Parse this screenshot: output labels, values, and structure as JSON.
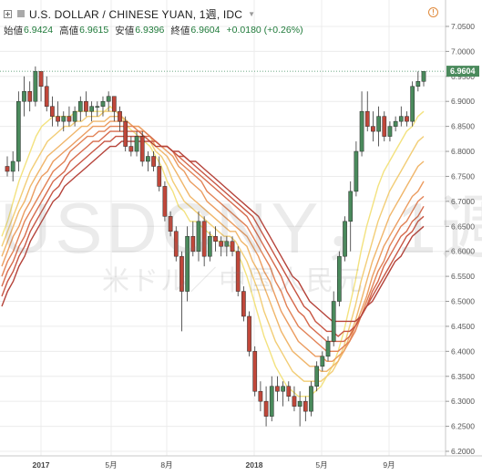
{
  "header": {
    "title": "U.S. DOLLAR / CHINESE YUAN, 1週, IDC",
    "open_label": "始値",
    "open_value": "6.9424",
    "high_label": "高値",
    "high_value": "6.9615",
    "low_label": "安値",
    "low_value": "6.9396",
    "close_label": "終値",
    "close_value": "6.9604",
    "change": "+0.0180 (+0.26%)"
  },
  "watermark": {
    "main": "USDCNY，1週",
    "sub": "米ドル／中国人民元"
  },
  "colors": {
    "up": "#4a8a5c",
    "down": "#c0473a",
    "grid": "#ececec",
    "ribbon": [
      "#f3e27f",
      "#f2cd76",
      "#f0b66b",
      "#eb9c60",
      "#e28256",
      "#d66a4c",
      "#c75543",
      "#b5433a"
    ]
  },
  "chart_data": {
    "type": "candlestick",
    "title": "U.S. DOLLAR / CHINESE YUAN, 1週, IDC",
    "y_ticks": [
      "7.0500",
      "7.0000",
      "6.9500",
      "6.9000",
      "6.8500",
      "6.8000",
      "6.7500",
      "6.7000",
      "6.6500",
      "6.6000",
      "6.5500",
      "6.5000",
      "6.4500",
      "6.4000",
      "6.3500",
      "6.3000",
      "6.2500",
      "6.2000"
    ],
    "x_ticks": [
      "2017",
      "5月",
      "8月",
      "2018",
      "5月",
      "9月"
    ],
    "ylim": [
      6.2,
      7.07
    ],
    "last_price": "6.9604",
    "candles": [
      [
        6.77,
        6.79,
        6.75,
        6.76
      ],
      [
        6.76,
        6.8,
        6.74,
        6.78
      ],
      [
        6.78,
        6.92,
        6.76,
        6.9
      ],
      [
        6.9,
        6.95,
        6.87,
        6.92
      ],
      [
        6.92,
        6.94,
        6.88,
        6.9
      ],
      [
        6.9,
        6.97,
        6.89,
        6.96
      ],
      [
        6.96,
        6.96,
        6.9,
        6.93
      ],
      [
        6.93,
        6.95,
        6.88,
        6.89
      ],
      [
        6.89,
        6.91,
        6.85,
        6.87
      ],
      [
        6.87,
        6.9,
        6.85,
        6.86
      ],
      [
        6.86,
        6.88,
        6.84,
        6.87
      ],
      [
        6.87,
        6.89,
        6.85,
        6.86
      ],
      [
        6.86,
        6.89,
        6.85,
        6.88
      ],
      [
        6.88,
        6.91,
        6.86,
        6.9
      ],
      [
        6.9,
        6.92,
        6.87,
        6.88
      ],
      [
        6.88,
        6.9,
        6.86,
        6.89
      ],
      [
        6.89,
        6.9,
        6.87,
        6.89
      ],
      [
        6.89,
        6.91,
        6.87,
        6.9
      ],
      [
        6.9,
        6.92,
        6.88,
        6.91
      ],
      [
        6.91,
        6.91,
        6.86,
        6.88
      ],
      [
        6.88,
        6.89,
        6.84,
        6.86
      ],
      [
        6.86,
        6.87,
        6.8,
        6.81
      ],
      [
        6.81,
        6.83,
        6.79,
        6.8
      ],
      [
        6.8,
        6.84,
        6.79,
        6.83
      ],
      [
        6.83,
        6.84,
        6.77,
        6.78
      ],
      [
        6.78,
        6.8,
        6.76,
        6.79
      ],
      [
        6.79,
        6.8,
        6.76,
        6.77
      ],
      [
        6.77,
        6.79,
        6.72,
        6.73
      ],
      [
        6.73,
        6.74,
        6.66,
        6.67
      ],
      [
        6.67,
        6.68,
        6.63,
        6.64
      ],
      [
        6.64,
        6.65,
        6.58,
        6.59
      ],
      [
        6.59,
        6.6,
        6.44,
        6.52
      ],
      [
        6.52,
        6.65,
        6.5,
        6.63
      ],
      [
        6.63,
        6.66,
        6.59,
        6.6
      ],
      [
        6.6,
        6.68,
        6.58,
        6.66
      ],
      [
        6.66,
        6.67,
        6.57,
        6.59
      ],
      [
        6.59,
        6.64,
        6.58,
        6.63
      ],
      [
        6.63,
        6.65,
        6.6,
        6.62
      ],
      [
        6.62,
        6.63,
        6.59,
        6.61
      ],
      [
        6.61,
        6.63,
        6.59,
        6.62
      ],
      [
        6.62,
        6.63,
        6.59,
        6.6
      ],
      [
        6.6,
        6.61,
        6.51,
        6.52
      ],
      [
        6.52,
        6.53,
        6.46,
        6.47
      ],
      [
        6.47,
        6.48,
        6.39,
        6.4
      ],
      [
        6.4,
        6.41,
        6.31,
        6.32
      ],
      [
        6.32,
        6.34,
        6.28,
        6.3
      ],
      [
        6.3,
        6.33,
        6.25,
        6.27
      ],
      [
        6.27,
        6.35,
        6.26,
        6.33
      ],
      [
        6.33,
        6.35,
        6.3,
        6.32
      ],
      [
        6.32,
        6.34,
        6.29,
        6.33
      ],
      [
        6.33,
        6.34,
        6.3,
        6.31
      ],
      [
        6.31,
        6.33,
        6.28,
        6.29
      ],
      [
        6.29,
        6.32,
        6.25,
        6.3
      ],
      [
        6.3,
        6.31,
        6.26,
        6.28
      ],
      [
        6.28,
        6.34,
        6.27,
        6.33
      ],
      [
        6.33,
        6.38,
        6.32,
        6.37
      ],
      [
        6.37,
        6.4,
        6.36,
        6.39
      ],
      [
        6.39,
        6.43,
        6.38,
        6.42
      ],
      [
        6.42,
        6.52,
        6.41,
        6.5
      ],
      [
        6.5,
        6.6,
        6.49,
        6.59
      ],
      [
        6.59,
        6.67,
        6.58,
        6.66
      ],
      [
        6.66,
        6.74,
        6.6,
        6.72
      ],
      [
        6.72,
        6.82,
        6.71,
        6.8
      ],
      [
        6.8,
        6.92,
        6.79,
        6.88
      ],
      [
        6.88,
        6.92,
        6.84,
        6.85
      ],
      [
        6.85,
        6.88,
        6.82,
        6.84
      ],
      [
        6.84,
        6.89,
        6.81,
        6.87
      ],
      [
        6.87,
        6.88,
        6.82,
        6.83
      ],
      [
        6.83,
        6.86,
        6.82,
        6.85
      ],
      [
        6.85,
        6.87,
        6.84,
        6.86
      ],
      [
        6.86,
        6.89,
        6.85,
        6.87
      ],
      [
        6.87,
        6.88,
        6.85,
        6.86
      ],
      [
        6.86,
        6.94,
        6.85,
        6.93
      ],
      [
        6.93,
        6.96,
        6.92,
        6.94
      ],
      [
        6.94,
        6.96,
        6.93,
        6.96
      ]
    ],
    "ribbon": [
      {
        "period": 10,
        "values": [
          6.63,
          6.66,
          6.7,
          6.74,
          6.77,
          6.8,
          6.83,
          6.85,
          6.86,
          6.87,
          6.87,
          6.87,
          6.87,
          6.88,
          6.88,
          6.88,
          6.88,
          6.88,
          6.88,
          6.89,
          6.88,
          6.87,
          6.85,
          6.84,
          6.83,
          6.82,
          6.81,
          6.79,
          6.77,
          6.74,
          6.72,
          6.69,
          6.68,
          6.66,
          6.66,
          6.65,
          6.64,
          6.63,
          6.62,
          6.62,
          6.61,
          6.6,
          6.58,
          6.55,
          6.51,
          6.47,
          6.43,
          6.4,
          6.37,
          6.35,
          6.33,
          6.32,
          6.31,
          6.31,
          6.31,
          6.32,
          6.33,
          6.35,
          6.37,
          6.4,
          6.44,
          6.49,
          6.54,
          6.6,
          6.65,
          6.69,
          6.73,
          6.76,
          6.78,
          6.8,
          6.82,
          6.84,
          6.85,
          6.87,
          6.88
        ]
      },
      {
        "period": 15,
        "values": [
          6.61,
          6.64,
          6.67,
          6.7,
          6.73,
          6.76,
          6.78,
          6.8,
          6.82,
          6.83,
          6.84,
          6.85,
          6.85,
          6.86,
          6.86,
          6.87,
          6.87,
          6.87,
          6.88,
          6.88,
          6.88,
          6.87,
          6.86,
          6.85,
          6.84,
          6.83,
          6.82,
          6.8,
          6.79,
          6.77,
          6.74,
          6.72,
          6.7,
          6.69,
          6.68,
          6.67,
          6.66,
          6.65,
          6.64,
          6.63,
          6.63,
          6.62,
          6.6,
          6.58,
          6.55,
          6.52,
          6.48,
          6.45,
          6.42,
          6.4,
          6.38,
          6.36,
          6.35,
          6.34,
          6.34,
          6.34,
          6.34,
          6.35,
          6.36,
          6.38,
          6.41,
          6.45,
          6.49,
          6.54,
          6.58,
          6.62,
          6.66,
          6.69,
          6.72,
          6.74,
          6.76,
          6.78,
          6.8,
          6.82,
          6.83
        ]
      },
      {
        "period": 20,
        "values": [
          6.59,
          6.62,
          6.65,
          6.68,
          6.7,
          6.73,
          6.75,
          6.77,
          6.79,
          6.8,
          6.81,
          6.82,
          6.83,
          6.84,
          6.85,
          6.85,
          6.86,
          6.86,
          6.86,
          6.87,
          6.87,
          6.87,
          6.86,
          6.85,
          6.85,
          6.84,
          6.83,
          6.81,
          6.8,
          6.79,
          6.77,
          6.75,
          6.73,
          6.71,
          6.7,
          6.69,
          6.68,
          6.67,
          6.66,
          6.65,
          6.64,
          6.64,
          6.62,
          6.61,
          6.58,
          6.56,
          6.53,
          6.5,
          6.47,
          6.44,
          6.42,
          6.4,
          6.39,
          6.38,
          6.37,
          6.37,
          6.36,
          6.36,
          6.37,
          6.38,
          6.4,
          6.43,
          6.46,
          6.5,
          6.54,
          6.58,
          6.61,
          6.64,
          6.67,
          6.69,
          6.71,
          6.73,
          6.75,
          6.77,
          6.78
        ]
      },
      {
        "period": 25,
        "values": [
          6.57,
          6.6,
          6.63,
          6.65,
          6.68,
          6.7,
          6.73,
          6.75,
          6.76,
          6.78,
          6.79,
          6.8,
          6.81,
          6.82,
          6.83,
          6.84,
          6.85,
          6.85,
          6.85,
          6.86,
          6.86,
          6.86,
          6.86,
          6.85,
          6.85,
          6.84,
          6.83,
          6.82,
          6.81,
          6.8,
          6.79,
          6.77,
          6.76,
          6.74,
          6.73,
          6.72,
          6.7,
          6.69,
          6.68,
          6.67,
          6.66,
          6.65,
          6.64,
          6.63,
          6.61,
          6.59,
          6.56,
          6.54,
          6.51,
          6.48,
          6.46,
          6.44,
          6.42,
          6.41,
          6.4,
          6.39,
          6.39,
          6.38,
          6.38,
          6.39,
          6.4,
          6.42,
          6.45,
          6.48,
          6.51,
          6.55,
          6.58,
          6.61,
          6.63,
          6.65,
          6.67,
          6.69,
          6.71,
          6.72,
          6.74
        ]
      },
      {
        "period": 30,
        "values": [
          6.55,
          6.58,
          6.6,
          6.63,
          6.66,
          6.68,
          6.7,
          6.72,
          6.74,
          6.76,
          6.77,
          6.78,
          6.8,
          6.81,
          6.82,
          6.83,
          6.83,
          6.84,
          6.84,
          6.85,
          6.85,
          6.85,
          6.85,
          6.85,
          6.84,
          6.84,
          6.83,
          6.82,
          6.81,
          6.81,
          6.8,
          6.78,
          6.77,
          6.76,
          6.75,
          6.74,
          6.72,
          6.71,
          6.7,
          6.69,
          6.68,
          6.67,
          6.66,
          6.65,
          6.63,
          6.61,
          6.59,
          6.57,
          6.54,
          6.52,
          6.49,
          6.47,
          6.45,
          6.44,
          6.43,
          6.42,
          6.41,
          6.4,
          6.4,
          6.4,
          6.41,
          6.42,
          6.44,
          6.47,
          6.5,
          6.53,
          6.56,
          6.58,
          6.61,
          6.63,
          6.65,
          6.66,
          6.68,
          6.7,
          6.71
        ]
      },
      {
        "period": 35,
        "values": [
          6.53,
          6.56,
          6.58,
          6.61,
          6.63,
          6.66,
          6.68,
          6.7,
          6.72,
          6.74,
          6.75,
          6.76,
          6.78,
          6.79,
          6.8,
          6.81,
          6.82,
          6.82,
          6.83,
          6.84,
          6.84,
          6.84,
          6.84,
          6.84,
          6.84,
          6.83,
          6.83,
          6.82,
          6.81,
          6.81,
          6.8,
          6.79,
          6.78,
          6.77,
          6.76,
          6.75,
          6.74,
          6.73,
          6.72,
          6.71,
          6.7,
          6.69,
          6.68,
          6.67,
          6.65,
          6.63,
          6.61,
          6.59,
          6.57,
          6.55,
          6.52,
          6.5,
          6.48,
          6.47,
          6.45,
          6.44,
          6.43,
          6.42,
          6.42,
          6.42,
          6.42,
          6.43,
          6.45,
          6.47,
          6.49,
          6.52,
          6.54,
          6.57,
          6.59,
          6.61,
          6.63,
          6.64,
          6.66,
          6.67,
          6.69
        ]
      },
      {
        "period": 40,
        "values": [
          6.51,
          6.54,
          6.56,
          6.59,
          6.61,
          6.64,
          6.66,
          6.68,
          6.7,
          6.72,
          6.73,
          6.75,
          6.76,
          6.77,
          6.78,
          6.79,
          6.8,
          6.81,
          6.82,
          6.82,
          6.83,
          6.83,
          6.83,
          6.83,
          6.83,
          6.83,
          6.82,
          6.82,
          6.81,
          6.81,
          6.8,
          6.79,
          6.79,
          6.78,
          6.77,
          6.76,
          6.75,
          6.74,
          6.73,
          6.72,
          6.71,
          6.7,
          6.69,
          6.68,
          6.67,
          6.65,
          6.63,
          6.61,
          6.59,
          6.57,
          6.55,
          6.53,
          6.51,
          6.49,
          6.48,
          6.46,
          6.45,
          6.44,
          6.44,
          6.43,
          6.44,
          6.44,
          6.45,
          6.47,
          6.49,
          6.51,
          6.53,
          6.55,
          6.57,
          6.59,
          6.61,
          6.63,
          6.64,
          6.66,
          6.67
        ]
      },
      {
        "period": 45,
        "values": [
          6.49,
          6.52,
          6.54,
          6.57,
          6.59,
          6.62,
          6.64,
          6.66,
          6.68,
          6.7,
          6.71,
          6.73,
          6.74,
          6.75,
          6.76,
          6.77,
          6.78,
          6.79,
          6.8,
          6.81,
          6.81,
          6.82,
          6.82,
          6.82,
          6.82,
          6.82,
          6.82,
          6.81,
          6.81,
          6.81,
          6.8,
          6.8,
          6.79,
          6.78,
          6.78,
          6.77,
          6.76,
          6.75,
          6.74,
          6.73,
          6.72,
          6.71,
          6.7,
          6.69,
          6.68,
          6.67,
          6.65,
          6.63,
          6.61,
          6.59,
          6.57,
          6.55,
          6.54,
          6.52,
          6.5,
          6.49,
          6.48,
          6.47,
          6.46,
          6.46,
          6.46,
          6.46,
          6.46,
          6.47,
          6.49,
          6.5,
          6.52,
          6.54,
          6.56,
          6.58,
          6.59,
          6.61,
          6.63,
          6.64,
          6.65
        ]
      }
    ]
  }
}
